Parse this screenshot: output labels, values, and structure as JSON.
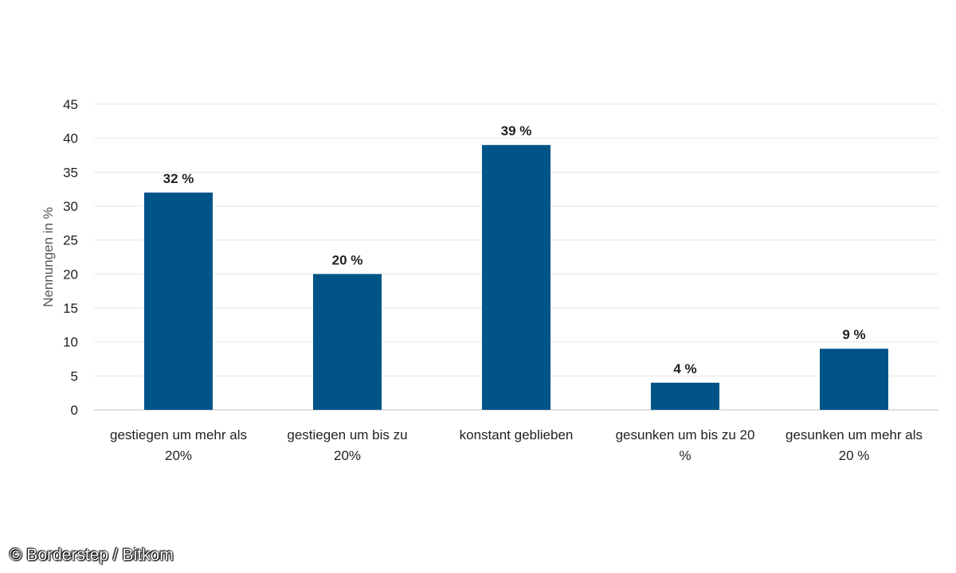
{
  "chart_data": {
    "type": "bar",
    "title": "",
    "xlabel": "",
    "ylabel": "Nennungen in %",
    "ylim": [
      0,
      45
    ],
    "yticks": [
      0,
      5,
      10,
      15,
      20,
      25,
      30,
      35,
      40,
      45
    ],
    "grid": true,
    "bar_color": "#005488",
    "categories": [
      [
        "gestiegen um mehr als",
        "20%"
      ],
      [
        "gestiegen um bis zu",
        "20%"
      ],
      [
        "konstant geblieben"
      ],
      [
        "gesunken um bis zu 20",
        "%"
      ],
      [
        "gesunken um mehr als",
        "20 %"
      ]
    ],
    "values": [
      32,
      20,
      39,
      4,
      9
    ],
    "data_labels": [
      "32 %",
      "20 %",
      "39 %",
      "4 %",
      "9 %"
    ]
  },
  "credit": "© Borderstep / Bitkom"
}
